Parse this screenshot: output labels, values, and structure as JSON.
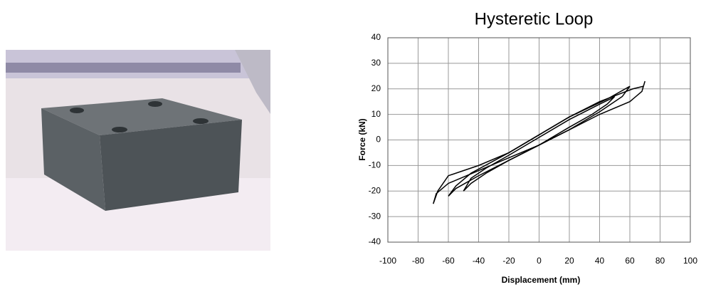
{
  "chart_data": {
    "type": "line",
    "title": "Hysteretic Loop",
    "x_label": "Displacement (mm)",
    "y_label": "Force (kN)",
    "xlim": [
      -100,
      100
    ],
    "xticks": [
      -100,
      -80,
      -60,
      -40,
      -20,
      0,
      20,
      40,
      60,
      80,
      100
    ],
    "ylim": [
      -40,
      40
    ],
    "yticks": [
      -40,
      -30,
      -20,
      -10,
      0,
      10,
      20,
      30,
      40
    ],
    "grid": true,
    "series": [
      {
        "color": "#000000",
        "x": [
          -50,
          -45,
          -35,
          -20,
          0,
          20,
          35,
          45,
          50,
          47,
          40,
          20,
          0,
          -20,
          -35,
          -45,
          -50
        ],
        "values": [
          -20,
          -17,
          -13,
          -8,
          -2,
          5,
          10,
          14,
          17,
          16,
          14,
          8,
          1,
          -6,
          -11,
          -15,
          -20
        ]
      },
      {
        "color": "#000000",
        "x": [
          -60,
          -55,
          -40,
          -20,
          0,
          20,
          40,
          55,
          60,
          57,
          45,
          20,
          0,
          -20,
          -45,
          -55,
          -60
        ],
        "values": [
          -22,
          -19,
          -14,
          -8,
          -2,
          4,
          11,
          17,
          21,
          20,
          16,
          9,
          2,
          -5,
          -13,
          -18,
          -22
        ],
        "value_labels": null
      },
      {
        "color": "#000000",
        "x": [
          -70,
          -68,
          -60,
          -40,
          -20,
          0,
          20,
          40,
          60,
          68,
          70,
          69,
          62,
          40,
          20,
          0,
          -20,
          -40,
          -60,
          -67,
          -70
        ],
        "values": [
          -25,
          -21,
          -17,
          -12,
          -7,
          -2,
          4,
          10,
          15,
          19,
          23,
          21,
          20,
          15,
          9,
          2,
          -5,
          -10,
          -14,
          -20,
          -25
        ]
      }
    ]
  }
}
